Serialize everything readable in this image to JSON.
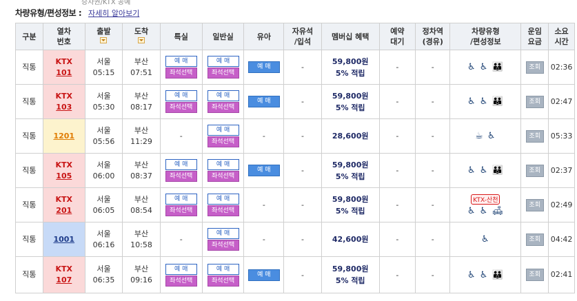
{
  "top_fragment": "승차권/KTX 공예",
  "heading": {
    "title": "차량유형/편성정보 :",
    "link": "자세히 알아보기"
  },
  "columns": [
    "구분",
    "열차\n번호",
    "출발",
    "도착",
    "특실",
    "일반실",
    "유아",
    "자유석\n/입석",
    "멤버십 혜택",
    "예약\n대기",
    "정차역\n(경유)",
    "차량유형\n/편성정보",
    "운임\n요금",
    "소요\n시간"
  ],
  "labels": {
    "reserve": "예 매",
    "seat_select": "좌석선택",
    "inquiry": "조회",
    "dash": "-"
  },
  "rows": [
    {
      "type": "직통",
      "train_kind": "KTX",
      "train_no": "101",
      "dep_station": "서울",
      "dep_time": "05:15",
      "arr_station": "부산",
      "arr_time": "07:51",
      "special": true,
      "infant": true,
      "price": "59,800원",
      "points": "5% 적립",
      "icons": "♿ ♿ 👪",
      "tag": "",
      "duration": "02:36"
    },
    {
      "type": "직통",
      "train_kind": "KTX",
      "train_no": "103",
      "dep_station": "서울",
      "dep_time": "05:30",
      "arr_station": "부산",
      "arr_time": "08:17",
      "special": true,
      "infant": true,
      "price": "59,800원",
      "points": "5% 적립",
      "icons": "♿ ♿ 👪",
      "tag": "",
      "duration": "02:47"
    },
    {
      "type": "직통",
      "train_kind": "",
      "train_no": "1201",
      "dep_station": "서울",
      "dep_time": "05:56",
      "arr_station": "부산",
      "arr_time": "11:29",
      "special": false,
      "infant": false,
      "price": "28,600원",
      "points": "",
      "icons": "☕ ♿",
      "tag": "",
      "duration": "05:33"
    },
    {
      "type": "직통",
      "train_kind": "KTX",
      "train_no": "105",
      "dep_station": "서울",
      "dep_time": "06:00",
      "arr_station": "부산",
      "arr_time": "08:37",
      "special": true,
      "infant": true,
      "price": "59,800원",
      "points": "5% 적립",
      "icons": "♿ ♿ 👪",
      "tag": "",
      "duration": "02:37"
    },
    {
      "type": "직통",
      "train_kind": "KTX",
      "train_no": "201",
      "dep_station": "서울",
      "dep_time": "06:05",
      "arr_station": "부산",
      "arr_time": "08:54",
      "special": true,
      "infant": false,
      "price": "59,800원",
      "points": "5% 적립",
      "icons": "♿ ♿ 🛋",
      "tag": "KTX-산천",
      "duration": "02:49"
    },
    {
      "type": "직통",
      "train_kind": "",
      "train_no": "1001",
      "dep_station": "서울",
      "dep_time": "06:16",
      "arr_station": "부산",
      "arr_time": "10:58",
      "special": false,
      "infant": false,
      "price": "42,600원",
      "points": "",
      "icons": "♿",
      "tag": "",
      "duration": "04:42"
    },
    {
      "type": "직통",
      "train_kind": "KTX",
      "train_no": "107",
      "dep_station": "서울",
      "dep_time": "06:35",
      "arr_station": "부산",
      "arr_time": "09:16",
      "special": true,
      "infant": true,
      "price": "59,800원",
      "points": "5% 적립",
      "icons": "♿ ♿ 👪",
      "tag": "",
      "duration": "02:41"
    }
  ],
  "colors": {
    "ktx_bg": "#fbd9d9",
    "ktx_text": "#c81414",
    "mugunghwa_bg": "#fdf3cd",
    "saemaeul_bg": "#c7daf7",
    "select_btn": "#c65fc8",
    "reserve_btn": "#4a8de0"
  }
}
